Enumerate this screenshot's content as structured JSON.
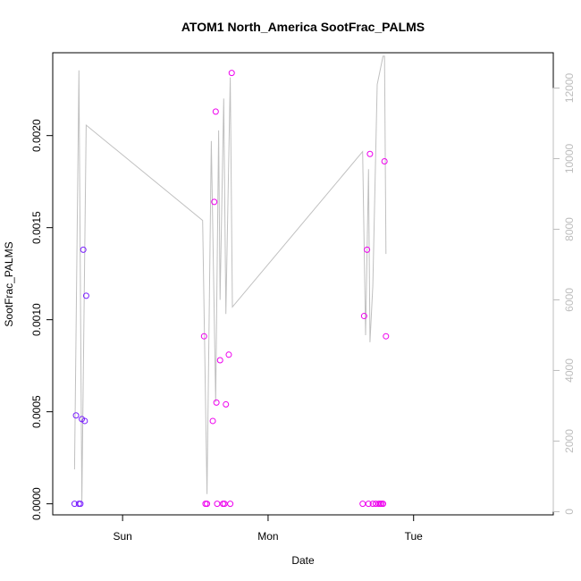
{
  "chart_data": {
    "type": "scatter",
    "title": "ATOM1 North_America SootFrac_PALMS",
    "xlabel": "Date",
    "ylabel": "SootFrac_PALMS",
    "xlim": [
      -0.48,
      2.96
    ],
    "ylim": [
      -6e-05,
      0.00245
    ],
    "y2lim": [
      -90,
      13000
    ],
    "x_ticks": [
      {
        "value": 0,
        "label": "Sun"
      },
      {
        "value": 1,
        "label": "Mon"
      },
      {
        "value": 2,
        "label": "Tue"
      }
    ],
    "y_ticks": [
      {
        "value": 0,
        "label": "0.0000"
      },
      {
        "value": 0.0005,
        "label": "0.0005"
      },
      {
        "value": 0.001,
        "label": "0.0010"
      },
      {
        "value": 0.0015,
        "label": "0.0015"
      },
      {
        "value": 0.002,
        "label": "0.0020"
      }
    ],
    "y2_ticks": [
      {
        "value": 0,
        "label": "0"
      },
      {
        "value": 2000,
        "label": "2000"
      },
      {
        "value": 4000,
        "label": "4000"
      },
      {
        "value": 6000,
        "label": "6000"
      },
      {
        "value": 8000,
        "label": "8000"
      },
      {
        "value": 10000,
        "label": "10000"
      },
      {
        "value": 12000,
        "label": "12000"
      }
    ],
    "point_colors": [
      "#7a1fff",
      "#ee00ee"
    ],
    "line_color": "#c0c0c0",
    "series": [
      {
        "points": [
          {
            "x": -0.33,
            "y": 0.0,
            "c": 0
          },
          {
            "x": -0.32,
            "y": 0.00048,
            "c": 0
          },
          {
            "x": -0.3,
            "y": 0.0,
            "c": 0
          },
          {
            "x": -0.29,
            "y": 0.0,
            "c": 0
          },
          {
            "x": -0.28,
            "y": 0.00046,
            "c": 0
          },
          {
            "x": -0.27,
            "y": 0.00138,
            "c": 0
          },
          {
            "x": -0.26,
            "y": 0.00045,
            "c": 0
          },
          {
            "x": -0.25,
            "y": 0.00113,
            "c": 0
          },
          {
            "x": 0.56,
            "y": 0.00091,
            "c": 1
          },
          {
            "x": 0.57,
            "y": 0.0,
            "c": 1
          },
          {
            "x": 0.58,
            "y": 0.0,
            "c": 1
          },
          {
            "x": 0.62,
            "y": 0.00045,
            "c": 1
          },
          {
            "x": 0.63,
            "y": 0.00164,
            "c": 1
          },
          {
            "x": 0.64,
            "y": 0.00213,
            "c": 1
          },
          {
            "x": 0.645,
            "y": 0.00055,
            "c": 1
          },
          {
            "x": 0.65,
            "y": 0.0,
            "c": 1
          },
          {
            "x": 0.67,
            "y": 0.00078,
            "c": 1
          },
          {
            "x": 0.69,
            "y": 0.0,
            "c": 1
          },
          {
            "x": 0.7,
            "y": 0.0,
            "c": 1
          },
          {
            "x": 0.71,
            "y": 0.00054,
            "c": 1
          },
          {
            "x": 0.73,
            "y": 0.00081,
            "c": 1
          },
          {
            "x": 0.74,
            "y": 0.0,
            "c": 1
          },
          {
            "x": 0.75,
            "y": 0.00234,
            "c": 1
          },
          {
            "x": 1.65,
            "y": 0.0,
            "c": 1
          },
          {
            "x": 1.66,
            "y": 0.00102,
            "c": 1
          },
          {
            "x": 1.68,
            "y": 0.00138,
            "c": 1
          },
          {
            "x": 1.69,
            "y": 0.0,
            "c": 1
          },
          {
            "x": 1.7,
            "y": 0.0019,
            "c": 1
          },
          {
            "x": 1.72,
            "y": 0.0,
            "c": 1
          },
          {
            "x": 1.74,
            "y": 0.0,
            "c": 1
          },
          {
            "x": 1.76,
            "y": 0.0,
            "c": 1
          },
          {
            "x": 1.77,
            "y": 0.0,
            "c": 1
          },
          {
            "x": 1.78,
            "y": 0.0,
            "c": 1
          },
          {
            "x": 1.79,
            "y": 0.0,
            "c": 1
          },
          {
            "x": 1.8,
            "y": 0.00186,
            "c": 1
          },
          {
            "x": 1.81,
            "y": 0.00091,
            "c": 1
          }
        ]
      },
      {
        "axis": "right",
        "values": [
          {
            "x": -0.33,
            "y": 1200
          },
          {
            "x": -0.3,
            "y": 12500
          },
          {
            "x": -0.28,
            "y": 300
          },
          {
            "x": -0.25,
            "y": 10950
          },
          {
            "x": 0.55,
            "y": 8250
          },
          {
            "x": 0.58,
            "y": 500
          },
          {
            "x": 0.61,
            "y": 10500
          },
          {
            "x": 0.64,
            "y": 3100
          },
          {
            "x": 0.66,
            "y": 10800
          },
          {
            "x": 0.67,
            "y": 6000
          },
          {
            "x": 0.695,
            "y": 11700
          },
          {
            "x": 0.71,
            "y": 5600
          },
          {
            "x": 0.74,
            "y": 12300
          },
          {
            "x": 0.755,
            "y": 5800
          },
          {
            "x": 1.65,
            "y": 10200
          },
          {
            "x": 1.67,
            "y": 5000
          },
          {
            "x": 1.69,
            "y": 9700
          },
          {
            "x": 1.7,
            "y": 4800
          },
          {
            "x": 1.72,
            "y": 6400
          },
          {
            "x": 1.75,
            "y": 12100
          },
          {
            "x": 1.79,
            "y": 12900
          },
          {
            "x": 1.8,
            "y": 12900
          },
          {
            "x": 1.81,
            "y": 7300
          }
        ]
      }
    ]
  }
}
